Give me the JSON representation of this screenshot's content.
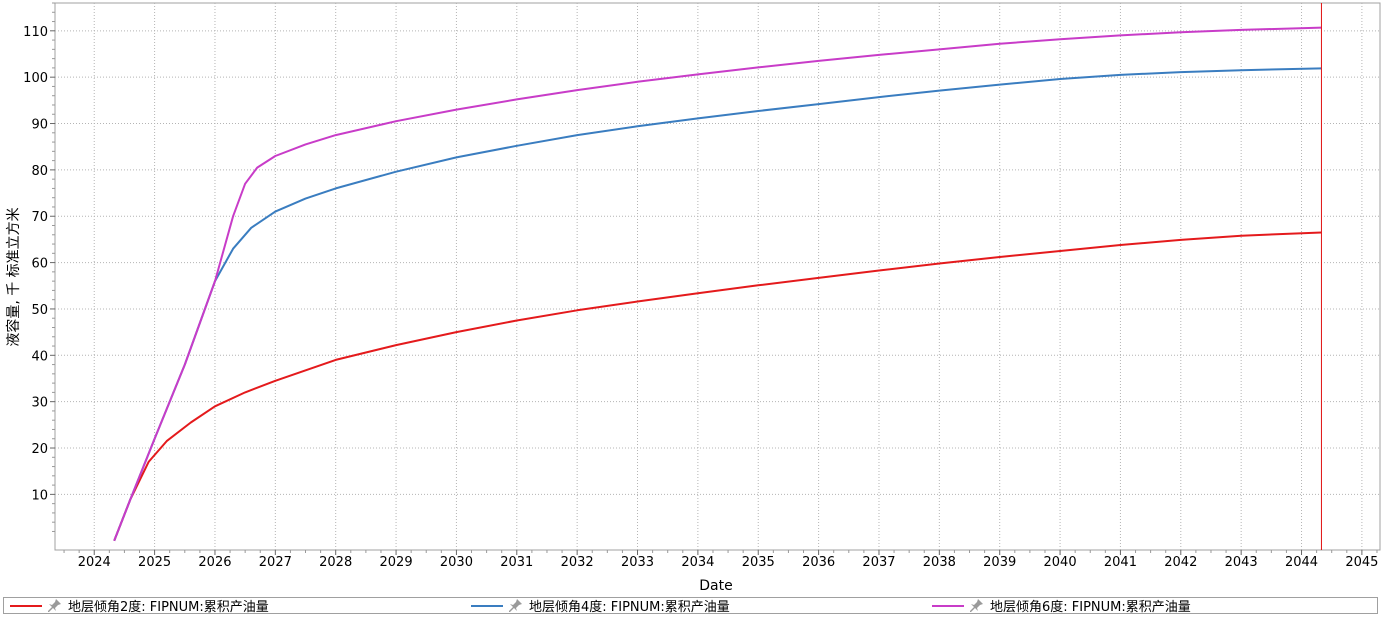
{
  "chart_data": {
    "type": "line",
    "xlabel": "Date",
    "ylabel": "液容量, 千 标准立方米",
    "x_ticks": [
      "2024",
      "2025",
      "2026",
      "2027",
      "2028",
      "2029",
      "2030",
      "2031",
      "2032",
      "2033",
      "2034",
      "2035",
      "2036",
      "2037",
      "2038",
      "2039",
      "2040",
      "2041",
      "2042",
      "2043",
      "2044",
      "2045"
    ],
    "y_ticks": [
      10,
      20,
      30,
      40,
      50,
      60,
      70,
      80,
      90,
      100,
      110
    ],
    "xlim": [
      2023.35,
      2045.3
    ],
    "ylim": [
      -2,
      116
    ],
    "grid": true,
    "marker_line_x": 2044.33,
    "marker_line_color": "#e01010",
    "legend_position": "bottom",
    "series": [
      {
        "name": "地层倾角2度: FIPNUM:累积产油量",
        "color": "#e41a1c",
        "x": [
          2024.33,
          2024.6,
          2024.9,
          2025.2,
          2025.6,
          2026.0,
          2026.5,
          2027.0,
          2028.0,
          2029.0,
          2030.0,
          2031.0,
          2032.0,
          2033.0,
          2034.0,
          2035.0,
          2036.0,
          2037.0,
          2038.0,
          2039.0,
          2040.0,
          2041.0,
          2042.0,
          2043.0,
          2044.33
        ],
        "values": [
          0,
          9,
          17,
          21.5,
          25.5,
          29,
          32,
          34.5,
          39,
          42.2,
          45,
          47.5,
          49.7,
          51.6,
          53.4,
          55.1,
          56.7,
          58.3,
          59.8,
          61.2,
          62.5,
          63.8,
          64.9,
          65.8,
          66.5
        ]
      },
      {
        "name": "地层倾角4度: FIPNUM:累积产油量",
        "color": "#3a7dc0",
        "x": [
          2024.33,
          2024.6,
          2025.0,
          2025.5,
          2026.0,
          2026.3,
          2026.6,
          2027.0,
          2027.5,
          2028.0,
          2029.0,
          2030.0,
          2031.0,
          2032.0,
          2033.0,
          2034.0,
          2035.0,
          2036.0,
          2037.0,
          2038.0,
          2039.0,
          2040.0,
          2041.0,
          2042.0,
          2043.0,
          2044.33
        ],
        "values": [
          0,
          9,
          22,
          38,
          56,
          63,
          67.5,
          71,
          73.8,
          76,
          79.6,
          82.7,
          85.2,
          87.5,
          89.4,
          91.1,
          92.7,
          94.2,
          95.7,
          97.1,
          98.4,
          99.6,
          100.5,
          101.1,
          101.5,
          101.9
        ]
      },
      {
        "name": "地层倾角6度: FIPNUM:累积产油量",
        "color": "#c83cc8",
        "x": [
          2024.33,
          2024.6,
          2025.0,
          2025.5,
          2026.0,
          2026.3,
          2026.5,
          2026.7,
          2027.0,
          2027.5,
          2028.0,
          2029.0,
          2030.0,
          2031.0,
          2032.0,
          2033.0,
          2034.0,
          2035.0,
          2036.0,
          2037.0,
          2038.0,
          2039.0,
          2040.0,
          2041.0,
          2042.0,
          2043.0,
          2044.33
        ],
        "values": [
          0,
          9,
          22,
          38,
          56,
          70,
          77,
          80.5,
          83,
          85.5,
          87.5,
          90.5,
          93,
          95.2,
          97.2,
          99,
          100.6,
          102.1,
          103.5,
          104.8,
          106,
          107.2,
          108.2,
          109,
          109.7,
          110.2,
          110.7
        ]
      }
    ]
  }
}
